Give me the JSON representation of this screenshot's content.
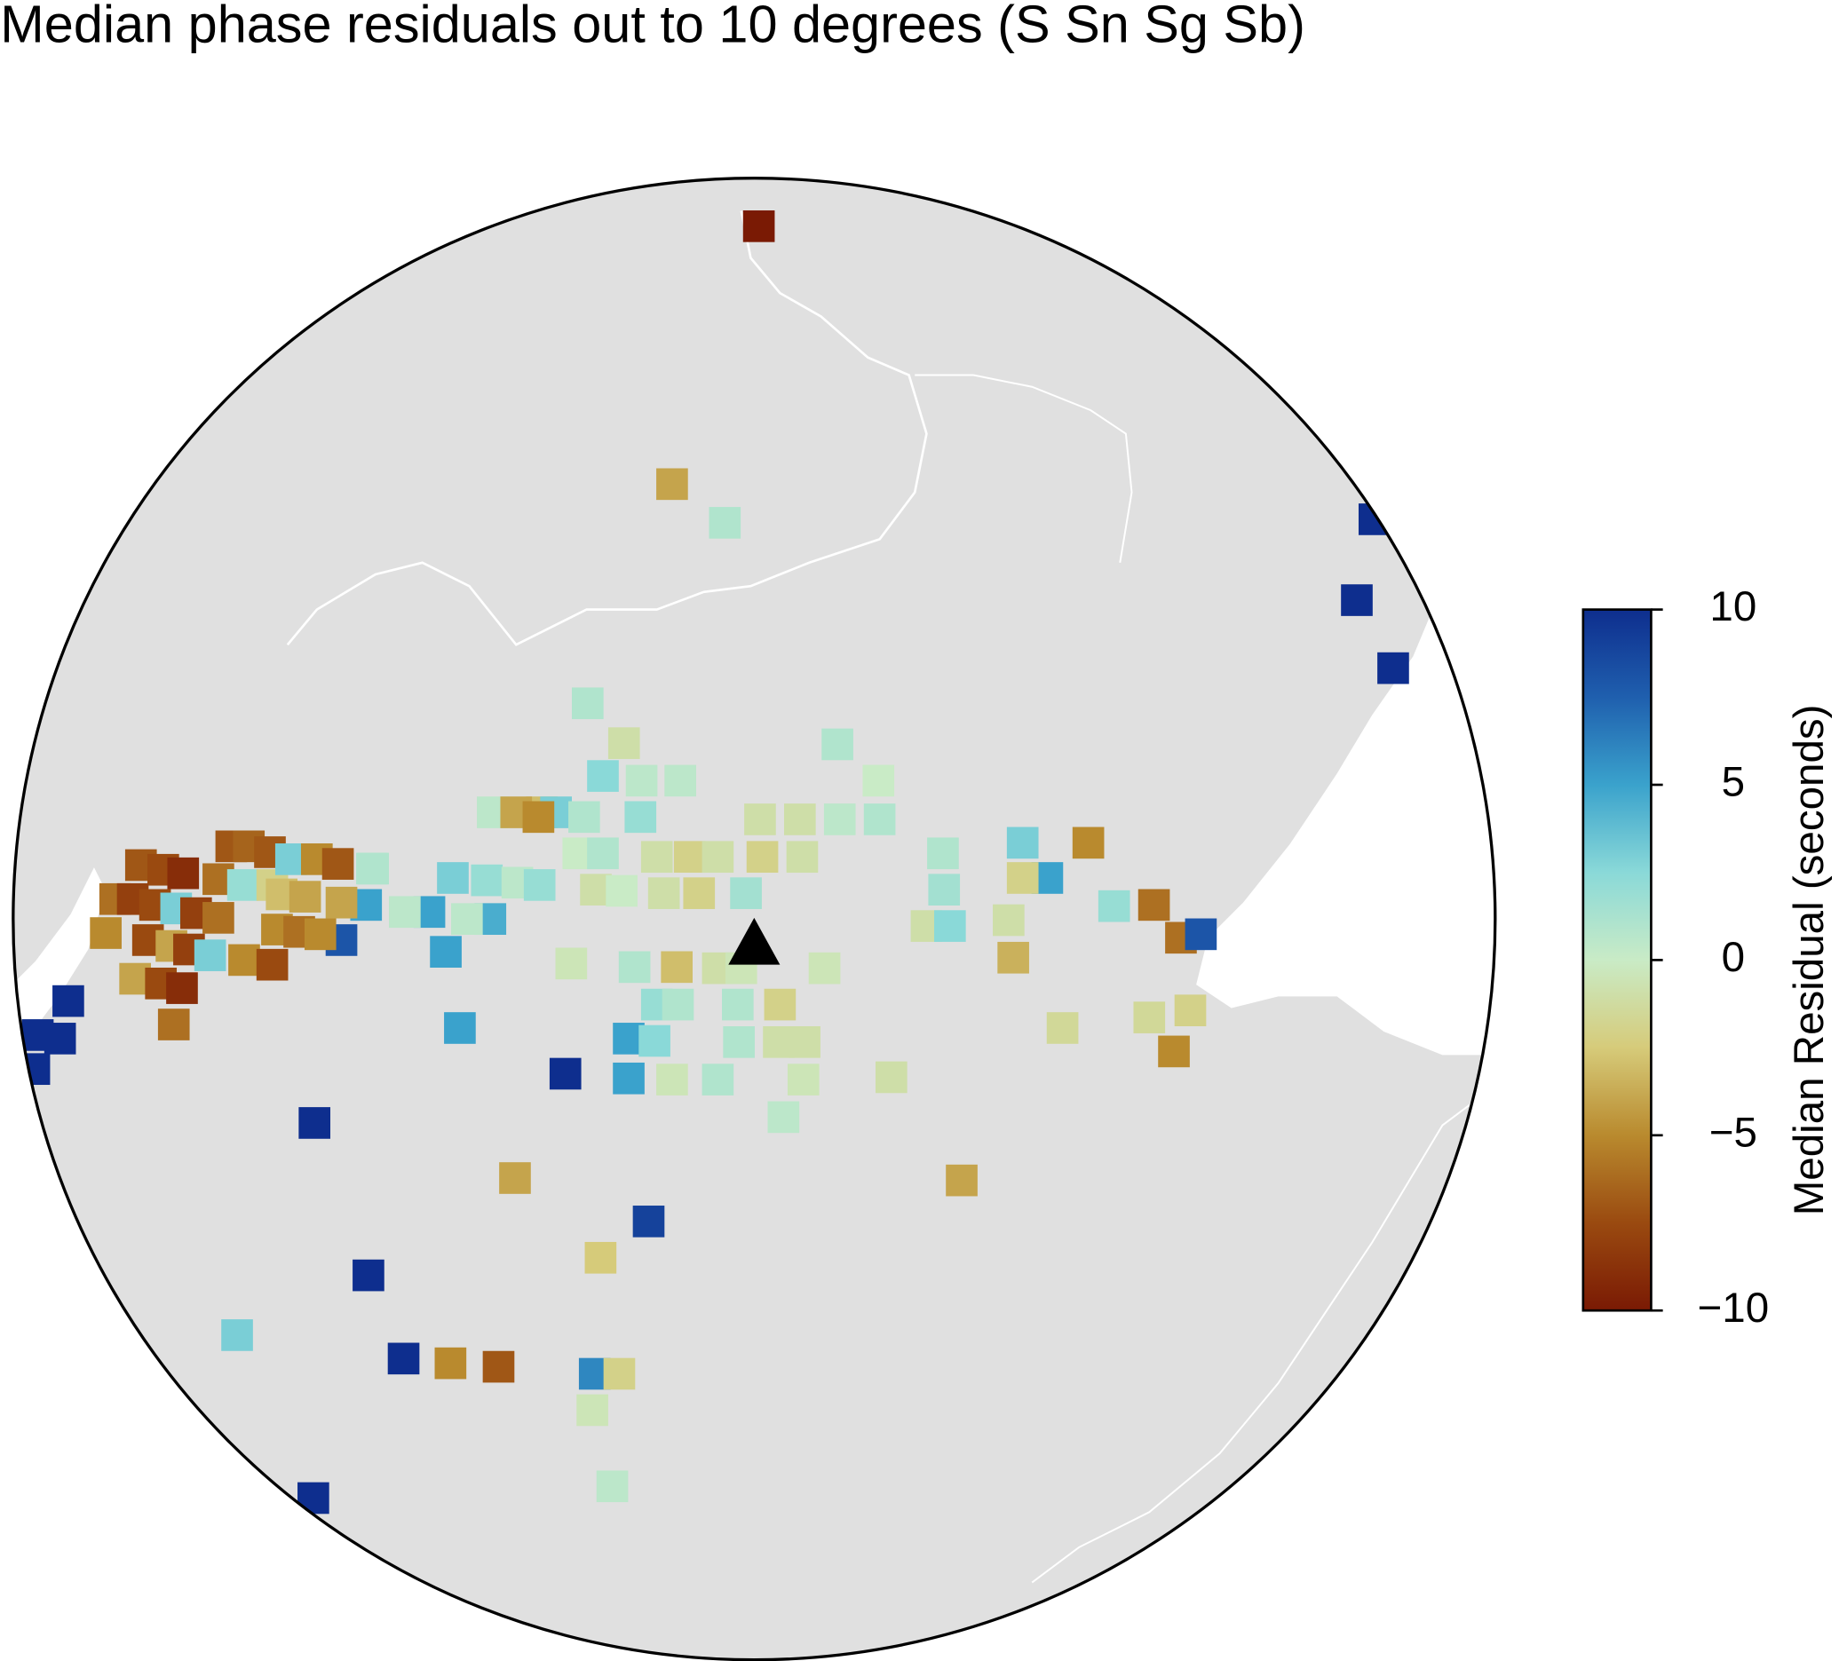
{
  "chart_data": {
    "type": "map",
    "title": "Median phase residuals out to 10 degrees (S Sn Sg Sb)",
    "colorbar_label": "Median Residual (seconds)",
    "clim": [
      -10,
      10
    ],
    "cticks": [
      {
        "value": -10,
        "label": "−10"
      },
      {
        "value": -5,
        "label": "−5"
      },
      0,
      5,
      10
    ],
    "colormap": [
      "#7a1a04",
      "#9a4a10",
      "#b98a2e",
      "#d6cb7a",
      "#c9ebc6",
      "#8ad9d8",
      "#3aa2cc",
      "#1f5fae",
      "#0e2e8e"
    ],
    "values": [
      -10,
      -4,
      1,
      10,
      10,
      10,
      1,
      -1,
      1,
      2.5,
      0.5,
      0.5,
      0,
      -3,
      3,
      1,
      2,
      -1,
      -1,
      0.5,
      1,
      0.5,
      -4,
      -5,
      0,
      1,
      -1,
      -2,
      -1,
      -2,
      -1,
      1,
      3,
      -5,
      5,
      -2,
      1.5,
      -1,
      0,
      -1,
      -2,
      1.5,
      2,
      -6,
      3,
      2,
      0.5,
      2,
      5,
      4.5,
      0.5,
      0.5,
      5,
      5,
      8,
      1,
      -1,
      2.5,
      -1,
      -3.5,
      -6,
      8,
      -0.5,
      1,
      -3,
      -1,
      -0.5,
      -0.5,
      2,
      1,
      1,
      -2,
      5,
      5,
      2.5,
      1,
      -1,
      -1,
      -1.5,
      -1.5,
      -2,
      -5,
      10,
      5,
      -0.5,
      1,
      -0.5,
      -1,
      0.5,
      10,
      -4,
      -4,
      9,
      -2.5,
      10,
      3,
      10,
      -5,
      -7,
      6,
      -2,
      -0.5,
      0.5,
      10,
      -7,
      -7.5,
      -9,
      -6,
      -8,
      -7.5,
      3,
      -8,
      -6,
      -5,
      -7.5,
      -4,
      -8,
      3,
      -4,
      -7.5,
      -9,
      -6,
      -7,
      -6.5,
      -7,
      -6,
      2,
      -2,
      3,
      -5,
      -7,
      1,
      -3,
      -4,
      -4,
      -5,
      -7.5,
      -5,
      -6,
      -5,
      10,
      10,
      10,
      10
    ]
  }
}
